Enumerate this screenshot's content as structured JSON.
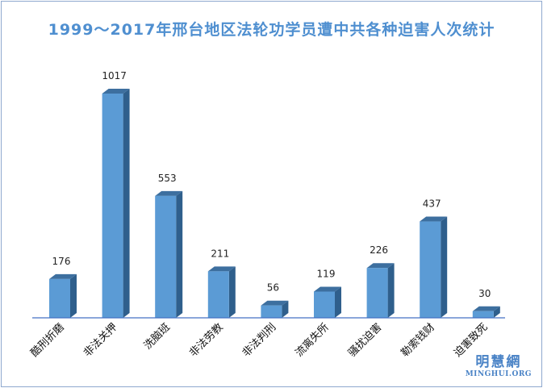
{
  "chart_data": {
    "type": "bar",
    "title": "1999～2017年邢台地区法轮功学员遭中共各种迫害人次统计",
    "categories": [
      "酷刑折磨",
      "非法关押",
      "洗脑班",
      "非法劳教",
      "非法判刑",
      "流离失所",
      "骚扰迫害",
      "勒索钱财",
      "迫害致死"
    ],
    "values": [
      176,
      1017,
      553,
      211,
      56,
      119,
      226,
      437,
      30
    ],
    "xlabel": "",
    "ylabel": "",
    "ylim": [
      0,
      1017
    ],
    "grid": false,
    "legend": "none",
    "colors": {
      "bar_front": "#5b9bd5",
      "bar_side": "#2f5f8c",
      "bar_top": "#3d6f9f",
      "title": "#4f8fd0",
      "axis": "#4472c4"
    }
  },
  "watermark": {
    "cn": "明慧網",
    "en": "MINGHUI.ORG"
  }
}
